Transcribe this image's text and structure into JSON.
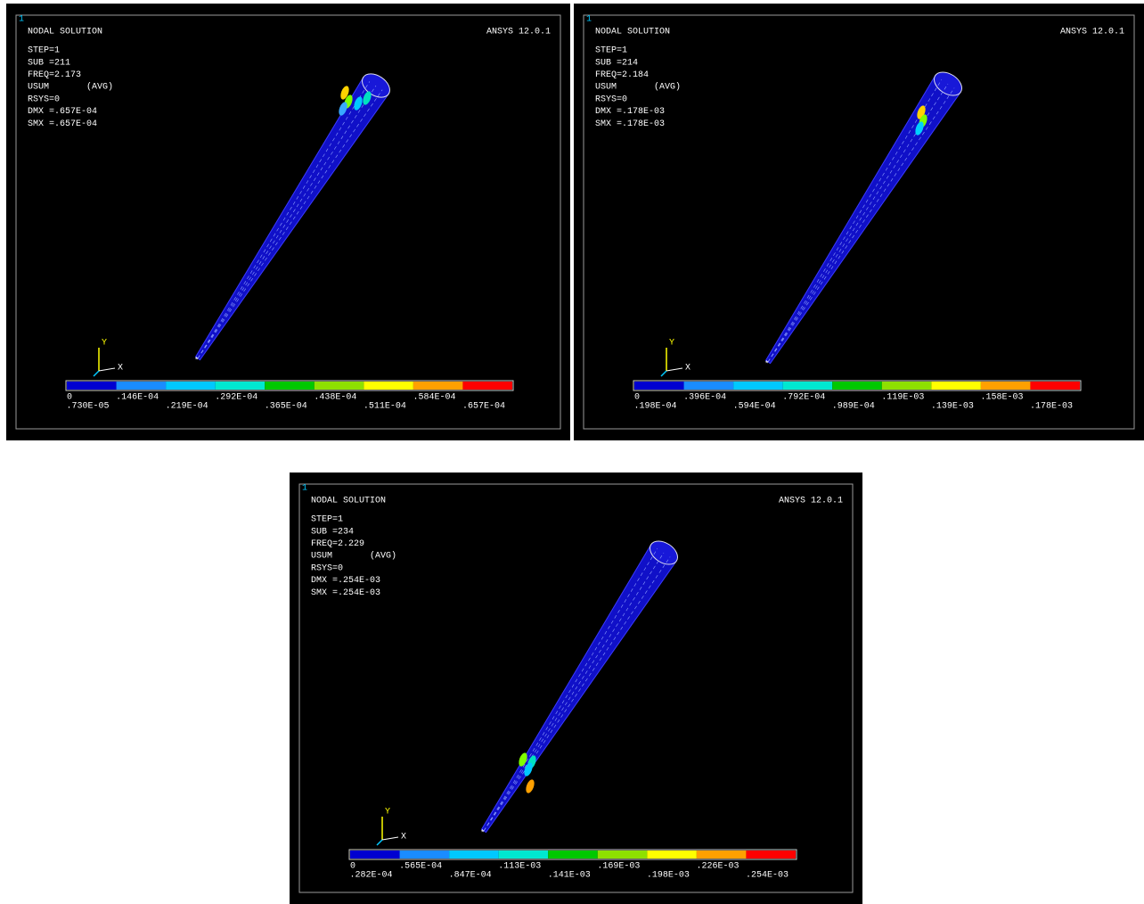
{
  "panels": [
    {
      "window": "1",
      "title": "NODAL SOLUTION",
      "version": "ANSYS 12.0.1",
      "info": [
        "STEP=1",
        "SUB =211",
        "FREQ=2.173",
        "USUM",
        "RSYS=0",
        "DMX =.657E-04",
        "SMX =.657E-04"
      ],
      "avg": "(AVG)",
      "axis_y": "Y",
      "axis_x": "X",
      "legend_labels": [
        "0",
        ".730E-05",
        ".146E-04",
        ".219E-04",
        ".292E-04",
        ".365E-04",
        ".438E-04",
        ".511E-04",
        ".584E-04",
        ".657E-04"
      ]
    },
    {
      "window": "1",
      "title": "NODAL SOLUTION",
      "version": "ANSYS 12.0.1",
      "info": [
        "STEP=1",
        "SUB =214",
        "FREQ=2.184",
        "USUM",
        "RSYS=0",
        "DMX =.178E-03",
        "SMX =.178E-03"
      ],
      "avg": "(AVG)",
      "axis_y": "Y",
      "axis_x": "X",
      "legend_labels": [
        "0",
        ".198E-04",
        ".396E-04",
        ".594E-04",
        ".792E-04",
        ".989E-04",
        ".119E-03",
        ".139E-03",
        ".158E-03",
        ".178E-03"
      ]
    },
    {
      "window": "1",
      "title": "NODAL SOLUTION",
      "version": "ANSYS 12.0.1",
      "info": [
        "STEP=1",
        "SUB =234",
        "FREQ=2.229",
        "USUM",
        "RSYS=0",
        "DMX =.254E-03",
        "SMX =.254E-03"
      ],
      "avg": "(AVG)",
      "axis_y": "Y",
      "axis_x": "X",
      "legend_labels": [
        "0",
        ".282E-04",
        ".565E-04",
        ".847E-04",
        ".113E-03",
        ".141E-03",
        ".169E-03",
        ".198E-03",
        ".226E-03",
        ".254E-03"
      ]
    }
  ]
}
